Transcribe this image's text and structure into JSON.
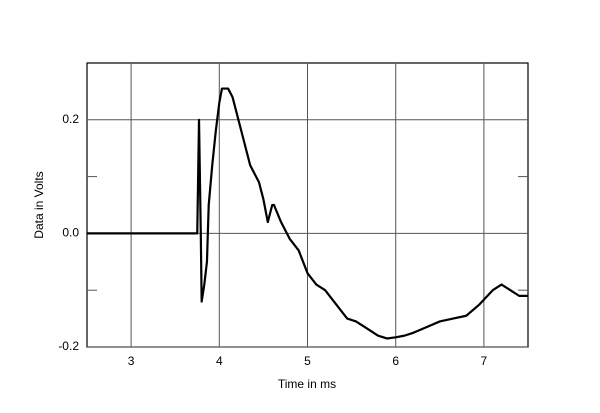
{
  "chart_data": {
    "type": "line",
    "xlabel": "Time in ms",
    "ylabel": "Data in Volts",
    "x": [
      2.5,
      3.7,
      3.75,
      3.77,
      3.79,
      3.8,
      3.83,
      3.86,
      3.88,
      3.92,
      3.96,
      4.0,
      4.03,
      4.1,
      4.15,
      4.25,
      4.35,
      4.45,
      4.5,
      4.55,
      4.6,
      4.62,
      4.7,
      4.8,
      4.9,
      5.0,
      5.1,
      5.2,
      5.3,
      5.45,
      5.55,
      5.7,
      5.8,
      5.9,
      6.0,
      6.1,
      6.2,
      6.35,
      6.5,
      6.65,
      6.8,
      6.95,
      7.1,
      7.2,
      7.3,
      7.4,
      7.5
    ],
    "series": [
      {
        "color": "#000000",
        "values": [
          0.0,
          0.0,
          0.0,
          0.2,
          0.0,
          -0.12,
          -0.09,
          -0.05,
          0.05,
          0.12,
          0.18,
          0.23,
          0.255,
          0.255,
          0.24,
          0.18,
          0.12,
          0.09,
          0.06,
          0.02,
          0.05,
          0.05,
          0.02,
          -0.01,
          -0.03,
          -0.07,
          -0.09,
          -0.1,
          -0.12,
          -0.15,
          -0.155,
          -0.17,
          -0.18,
          -0.185,
          -0.183,
          -0.18,
          -0.175,
          -0.165,
          -0.155,
          -0.15,
          -0.145,
          -0.125,
          -0.1,
          -0.09,
          -0.1,
          -0.11,
          -0.11
        ]
      }
    ],
    "xlim": [
      2.5,
      7.5
    ],
    "xticks": [
      3,
      4,
      5,
      6,
      7
    ],
    "ylim": [
      -0.2,
      0.3
    ],
    "yticks": [
      -0.2,
      {
        "value": 0,
        "label": "0.0"
      },
      0.2
    ],
    "yminor_ticks": [
      -0.1,
      0.1
    ],
    "grid": true
  }
}
